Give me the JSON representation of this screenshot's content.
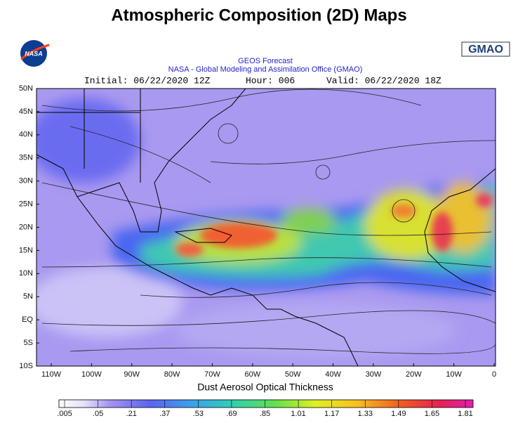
{
  "header": {
    "title": "Atmospheric Composition (2D) Maps",
    "logo_left": "NASA",
    "logo_right": "GMAO"
  },
  "map": {
    "subtitle": "GEOS Forecast",
    "source": "NASA - Global Modeling and Assimilation Office (GMAO)",
    "initial": "Initial: 06/22/2020 12Z",
    "hour": "Hour: 006",
    "valid": "Valid: 06/22/2020 18Z",
    "lat_labels": [
      "50N",
      "45N",
      "40N",
      "35N",
      "30N",
      "25N",
      "20N",
      "15N",
      "10N",
      "5N",
      "EQ",
      "5S",
      "10S"
    ],
    "lon_labels": [
      "110W",
      "100W",
      "90W",
      "80W",
      "70W",
      "60W",
      "50W",
      "40W",
      "30W",
      "20W",
      "10W",
      "0"
    ],
    "variable": "Dust Aerosol Optical Thickness"
  },
  "colorbar": {
    "labels": [
      ".005",
      ".05",
      ".21",
      ".37",
      ".53",
      ".69",
      ".85",
      "1.01",
      "1.17",
      "1.33",
      "1.49",
      "1.65",
      "1.81"
    ]
  }
}
